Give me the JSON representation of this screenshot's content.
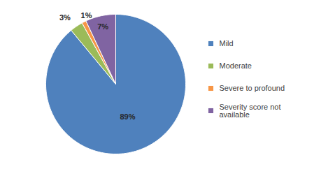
{
  "chart_data": {
    "type": "pie",
    "categories": [
      "Mild",
      "Moderate",
      "Severe to profound",
      "Severity score not available"
    ],
    "values": [
      89,
      3,
      1,
      7
    ],
    "value_labels": [
      "89%",
      "3%",
      "1%",
      "7%"
    ],
    "colors": [
      "#4f81bd",
      "#9bbb59",
      "#f79646",
      "#8064a2"
    ],
    "data_labels": true,
    "legend": "right"
  }
}
